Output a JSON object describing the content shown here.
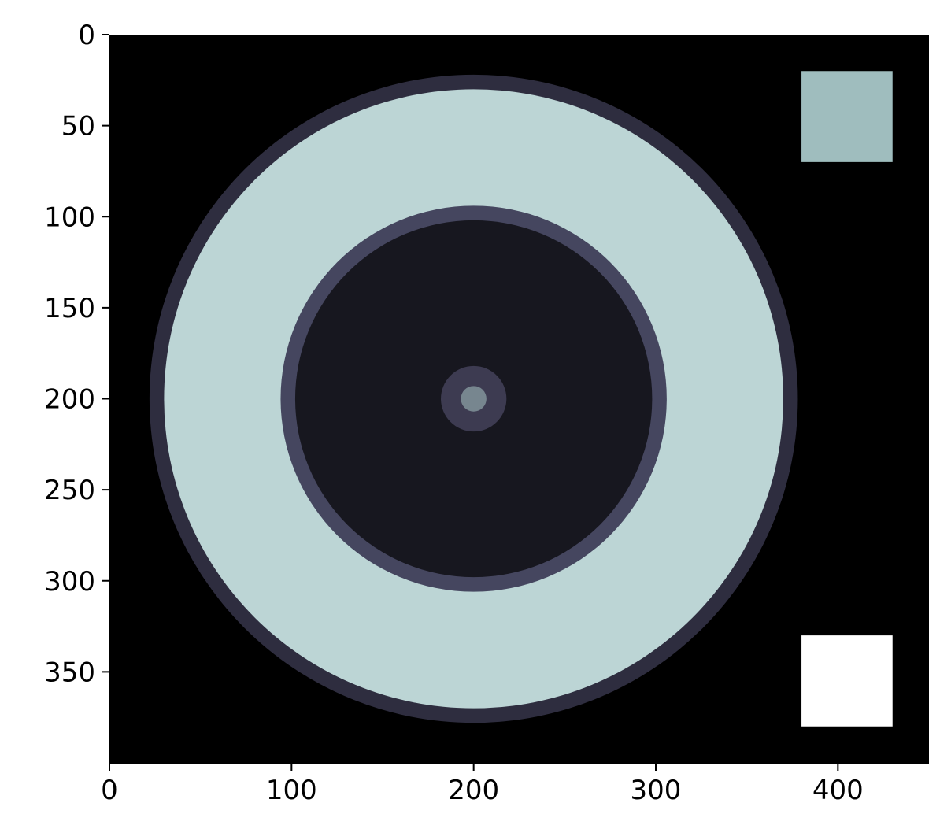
{
  "chart_data": {
    "type": "heatmap",
    "title": "",
    "xlabel": "",
    "ylabel": "",
    "xlim": [
      0,
      450
    ],
    "ylim": [
      400,
      0
    ],
    "x_ticks": [
      0,
      100,
      200,
      300,
      400
    ],
    "y_ticks": [
      0,
      50,
      100,
      150,
      200,
      250,
      300,
      350
    ],
    "x_tick_labels": [
      "0",
      "100",
      "200",
      "300",
      "400"
    ],
    "y_tick_labels": [
      "0",
      "50",
      "100",
      "150",
      "200",
      "250",
      "300",
      "350"
    ],
    "grid": false,
    "background_value_color": "#000000",
    "rings": [
      {
        "cx": 200,
        "cy": 200,
        "r": 178,
        "color": "#2e2d3f"
      },
      {
        "cx": 200,
        "cy": 200,
        "r": 170,
        "color": "#bcd5d5"
      },
      {
        "cx": 200,
        "cy": 200,
        "r": 106,
        "color": "#45465f"
      },
      {
        "cx": 200,
        "cy": 200,
        "r": 98,
        "color": "#17171f"
      },
      {
        "cx": 200,
        "cy": 200,
        "r": 18,
        "color": "#3d3b51"
      },
      {
        "cx": 200,
        "cy": 200,
        "r": 7,
        "color": "#77868f"
      }
    ],
    "squares": [
      {
        "x0": 380,
        "y0": 20,
        "x1": 430,
        "y1": 70,
        "color": "#9fbdbe"
      },
      {
        "x0": 380,
        "y0": 330,
        "x1": 430,
        "y1": 380,
        "color": "#ffffff"
      }
    ]
  }
}
